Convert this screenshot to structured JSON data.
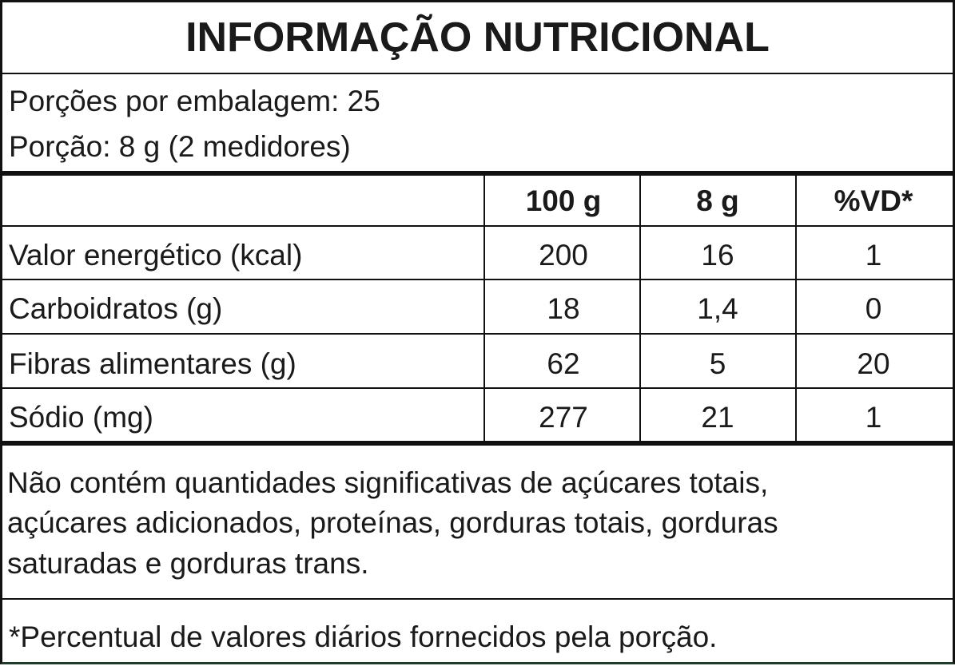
{
  "header": {
    "title": "INFORMAÇÃO NUTRICIONAL"
  },
  "servings": [
    "Porções por embalagem: 25",
    "Porção: 8 g (2 medidores)"
  ],
  "table": {
    "columns": [
      "100 g",
      "8 g",
      "%VD*"
    ],
    "rows": [
      [
        "Valor energético (kcal)",
        "200",
        "16",
        "1"
      ],
      [
        "Carboidratos (g)",
        "18",
        "1,4",
        "0"
      ],
      [
        "Fibras alimentares (g)",
        "62",
        "5",
        "20"
      ],
      [
        "Sódio (mg)",
        "277",
        "21",
        "1"
      ]
    ]
  },
  "note": [
    "Não contém quantidades significativas de açúcares totais,",
    "açúcares adicionados, proteínas, gorduras totais, gorduras",
    "saturadas e gorduras trans."
  ],
  "footnote": "*Percentual de valores diários fornecidos pela porção."
}
